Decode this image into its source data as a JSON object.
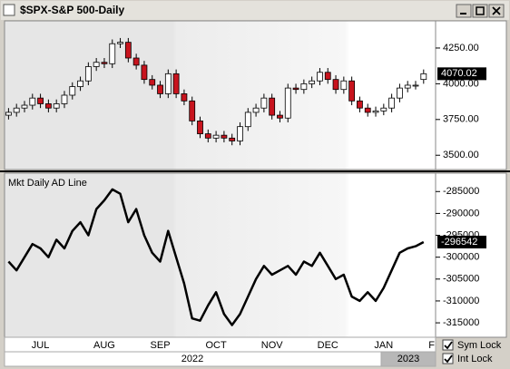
{
  "window": {
    "title": "$SPX-S&P 500-Daily"
  },
  "chart_data": [
    {
      "type": "candlestick",
      "open": [
        3780,
        3800,
        3830,
        3850,
        3900,
        3860,
        3830,
        3860,
        3920,
        3980,
        4020,
        4120,
        4150,
        4140,
        4280,
        4290,
        4180,
        4130,
        4030,
        3990,
        3930,
        4070,
        3930,
        3880,
        3740,
        3650,
        3620,
        3640,
        3620,
        3600,
        3700,
        3800,
        3830,
        3900,
        3780,
        3760,
        3970,
        3960,
        4000,
        4020,
        4080,
        4030,
        3960,
        4020,
        3880,
        3830,
        3800,
        3810,
        3830,
        3900,
        3970,
        3990,
        4030,
        null
      ],
      "high": [
        3830,
        3860,
        3880,
        3930,
        3930,
        3890,
        3890,
        3950,
        4010,
        4050,
        4150,
        4180,
        4180,
        4310,
        4320,
        4320,
        4210,
        4160,
        4060,
        4020,
        4100,
        4100,
        3960,
        3910,
        3770,
        3680,
        3670,
        3670,
        3650,
        3730,
        3830,
        3860,
        3930,
        3930,
        3810,
        4000,
        4000,
        4030,
        4050,
        4110,
        4110,
        4060,
        4050,
        4050,
        3910,
        3860,
        3840,
        3860,
        3930,
        4000,
        4020,
        4020,
        4100,
        null
      ],
      "low": [
        3750,
        3770,
        3800,
        3820,
        3830,
        3800,
        3800,
        3830,
        3890,
        3950,
        3990,
        4090,
        4110,
        4110,
        4250,
        4150,
        4100,
        4000,
        3960,
        3900,
        3900,
        3900,
        3850,
        3710,
        3620,
        3590,
        3590,
        3590,
        3570,
        3570,
        3670,
        3770,
        3800,
        3750,
        3730,
        3730,
        3930,
        3930,
        3970,
        3990,
        4000,
        3930,
        3930,
        3850,
        3800,
        3770,
        3770,
        3780,
        3800,
        3870,
        3940,
        3960,
        4000,
        null
      ],
      "close": [
        3800,
        3830,
        3850,
        3900,
        3860,
        3830,
        3860,
        3920,
        3980,
        4020,
        4120,
        4150,
        4140,
        4280,
        4290,
        4180,
        4130,
        4030,
        3990,
        3930,
        4070,
        3930,
        3880,
        3740,
        3650,
        3620,
        3640,
        3620,
        3600,
        3700,
        3800,
        3830,
        3900,
        3780,
        3760,
        3970,
        3960,
        4000,
        4020,
        4080,
        4030,
        3960,
        4020,
        3880,
        3830,
        3800,
        3810,
        3830,
        3900,
        3970,
        3990,
        3990,
        4070.02,
        null
      ],
      "up_color": "#ffffff",
      "down_color": "#c8141e",
      "ylim": [
        3400,
        4440
      ],
      "yticks": [
        {
          "value": 3500,
          "label": "3500.00"
        },
        {
          "value": 3750,
          "label": "3750.00"
        },
        {
          "value": 4000,
          "label": "4000.00"
        },
        {
          "value": 4250,
          "label": "4250.00"
        }
      ]
    },
    {
      "type": "line",
      "title": "Mkt Daily AD Line",
      "color": "#000000",
      "categories": [
        null,
        null,
        null,
        null,
        "JUL",
        null,
        null,
        null,
        null,
        null,
        null,
        null,
        "AUG",
        null,
        null,
        null,
        null,
        null,
        null,
        "SEP",
        null,
        null,
        null,
        null,
        null,
        null,
        "OCT",
        null,
        null,
        null,
        null,
        null,
        null,
        "NOV",
        null,
        null,
        null,
        null,
        null,
        null,
        "DEC",
        null,
        null,
        null,
        null,
        null,
        null,
        "JAN",
        null,
        null,
        null,
        null,
        null,
        "F"
      ],
      "values": [
        -301000,
        -303000,
        -300000,
        -297000,
        -298000,
        -300000,
        -296000,
        -298000,
        -294000,
        -292000,
        -295000,
        -289000,
        -287000,
        -284500,
        -285500,
        -292000,
        -289000,
        -295000,
        -299000,
        -301000,
        -294000,
        -300000,
        -306000,
        -314000,
        -314500,
        -311000,
        -308000,
        -313000,
        -315500,
        -313000,
        -309000,
        -305000,
        -302000,
        -304000,
        -303000,
        -302000,
        -304000,
        -301000,
        -302000,
        -299000,
        -302000,
        -305000,
        -304000,
        -309000,
        -310000,
        -308000,
        -310000,
        -307000,
        -303000,
        -299000,
        -298000,
        -297500,
        -296542,
        null
      ],
      "ylim": [
        -318300,
        -280800
      ],
      "yticks": [
        -315000,
        -310000,
        -305000,
        -300000,
        -295000,
        -290000,
        -285000
      ],
      "years": [
        "2022",
        "2023"
      ]
    }
  ],
  "controls": [
    {
      "label": "Sym Lock",
      "checked": true
    },
    {
      "label": "Int Lock",
      "checked": true
    }
  ]
}
